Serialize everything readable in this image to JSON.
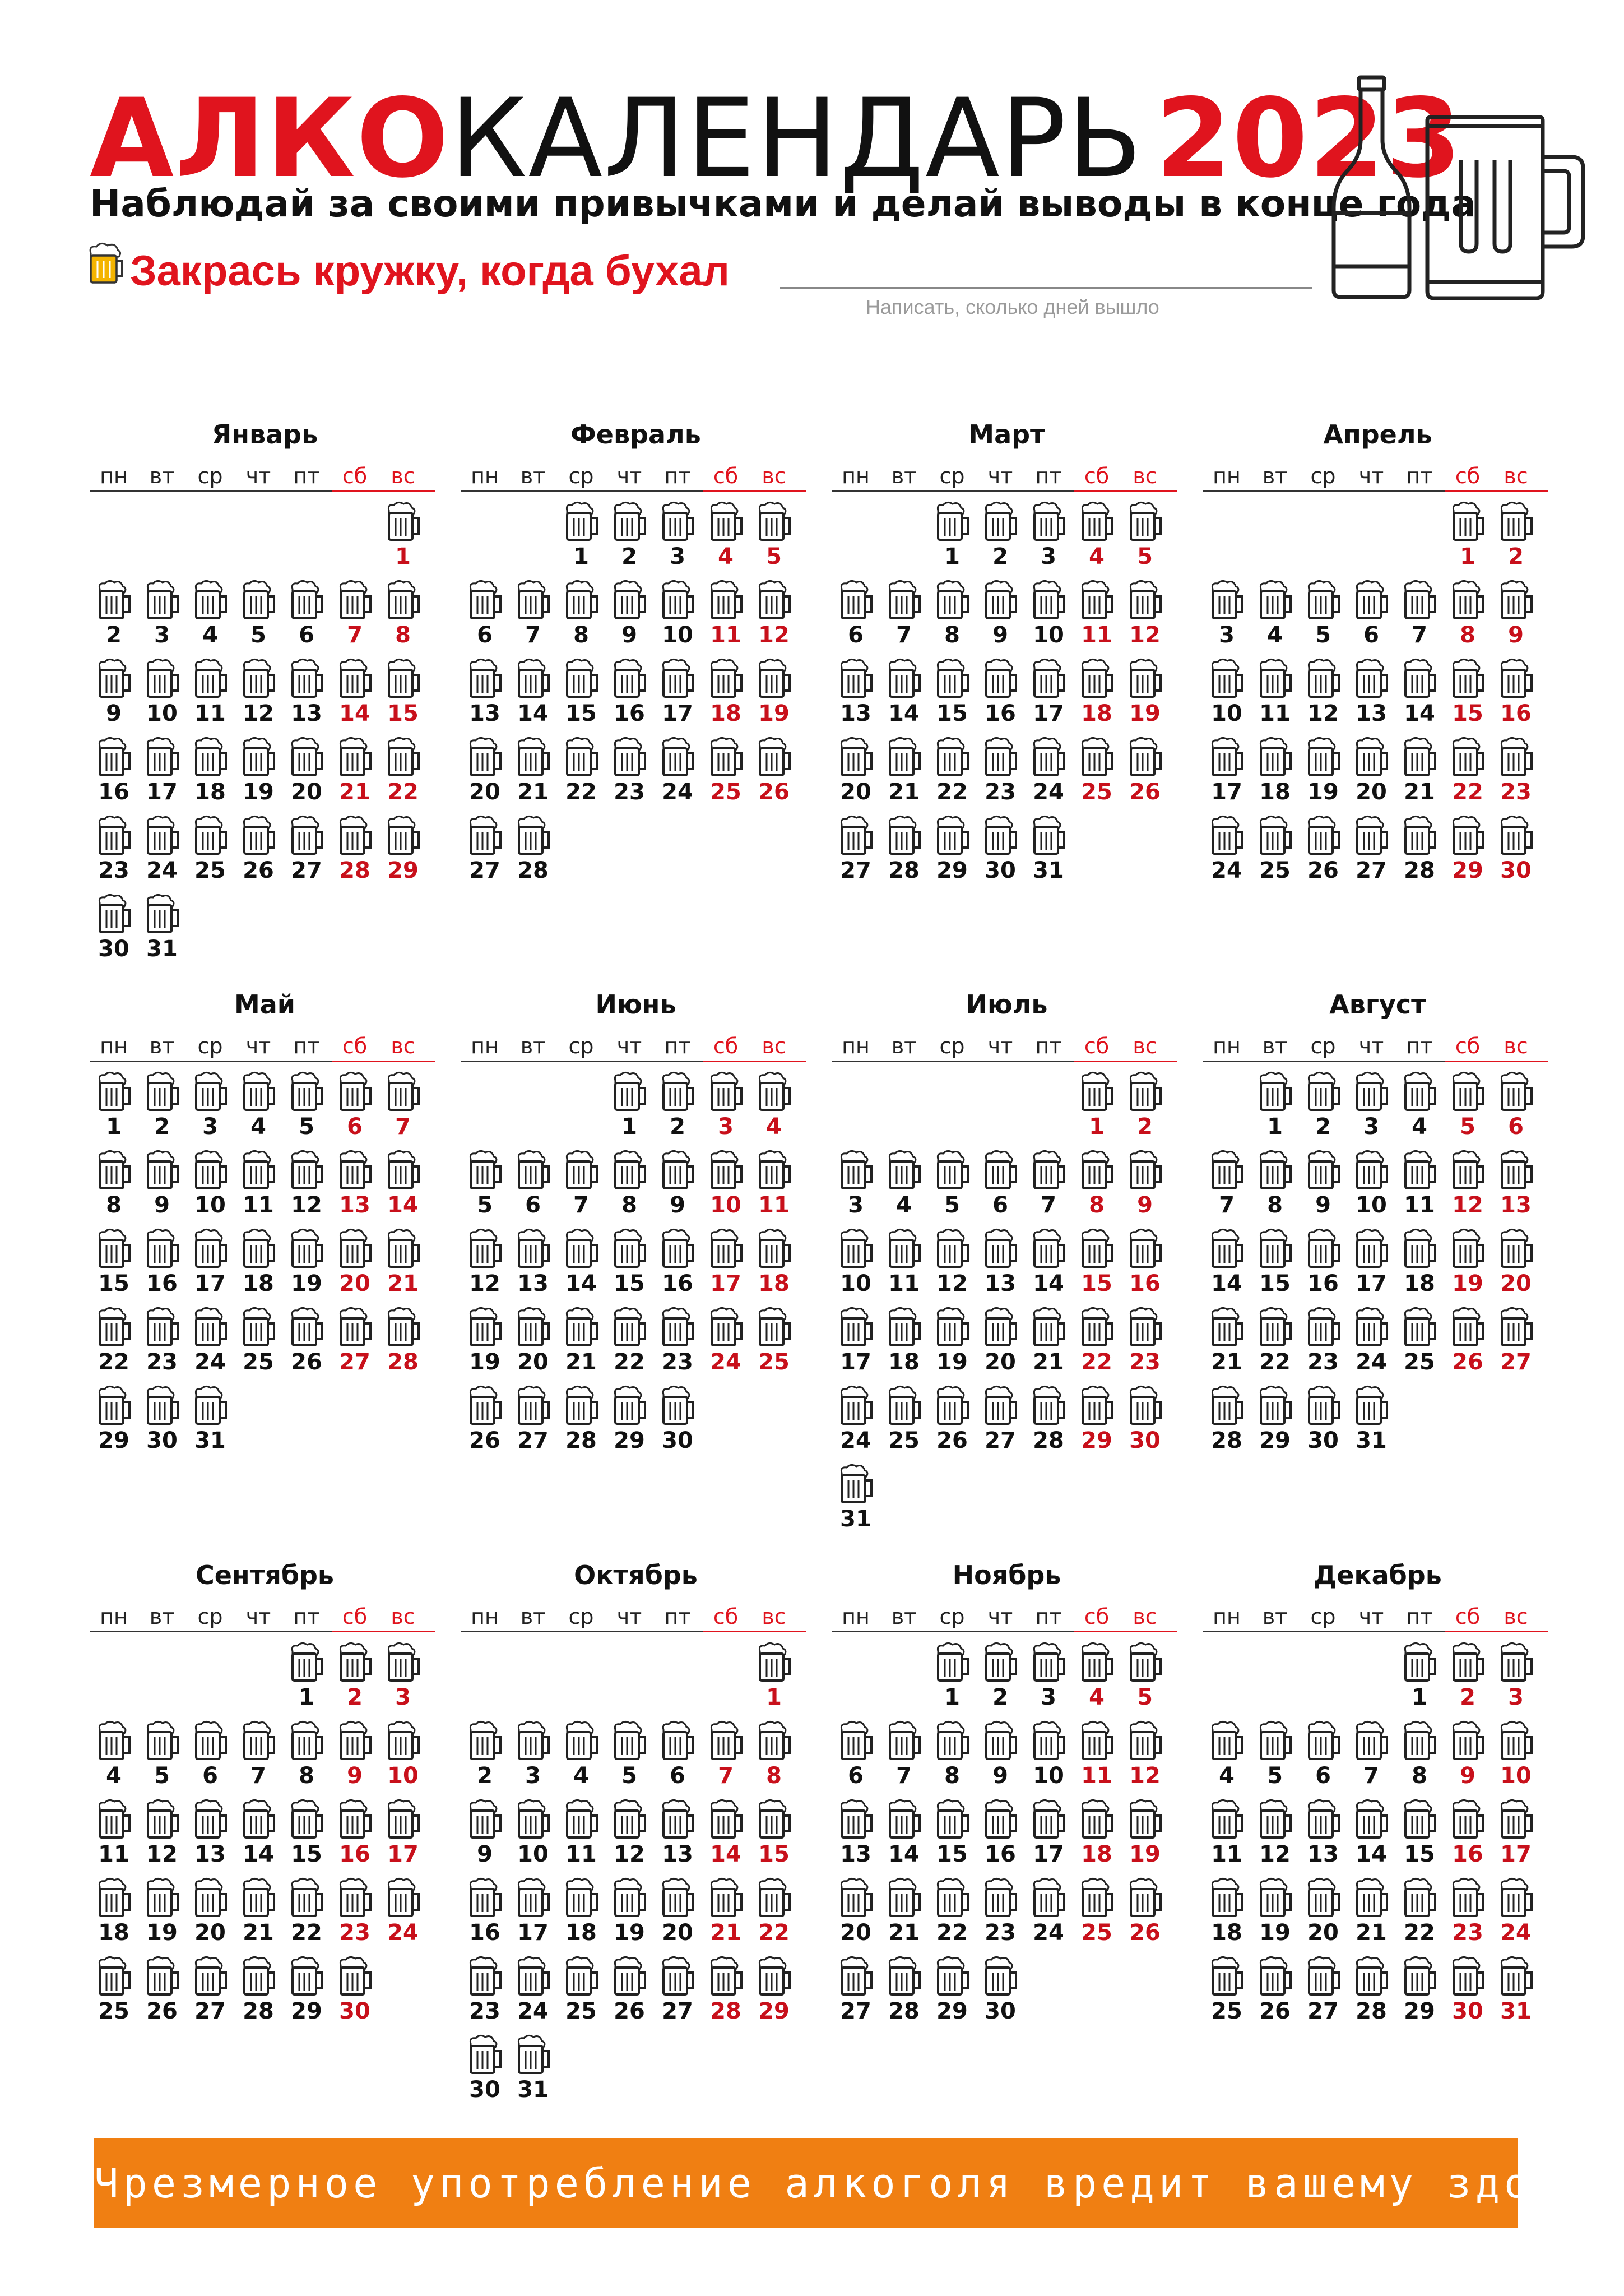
{
  "header": {
    "title_part1": "АЛКО",
    "title_part2": "КАЛЕНДАРЬ",
    "title_part3": "2023",
    "subtitle": "Наблюдай за своими привычками и делай выводы в конце года",
    "instruction": "Закрась кружку, когда бухал",
    "write_hint": "Написать, сколько дней вышло",
    "icons": [
      "beer-mug-icon",
      "bottle-icon",
      "beer-glass-icon"
    ]
  },
  "weekdays": [
    "пн",
    "вт",
    "ср",
    "чт",
    "пт",
    "сб",
    "вс"
  ],
  "months": [
    {
      "name": "Январь",
      "first_weekday": 7,
      "days": 31
    },
    {
      "name": "Февраль",
      "first_weekday": 3,
      "days": 28
    },
    {
      "name": "Март",
      "first_weekday": 3,
      "days": 31
    },
    {
      "name": "Апрель",
      "first_weekday": 6,
      "days": 30
    },
    {
      "name": "Май",
      "first_weekday": 1,
      "days": 31
    },
    {
      "name": "Июнь",
      "first_weekday": 4,
      "days": 30
    },
    {
      "name": "Июль",
      "first_weekday": 6,
      "days": 31
    },
    {
      "name": "Август",
      "first_weekday": 2,
      "days": 31
    },
    {
      "name": "Сентябрь",
      "first_weekday": 5,
      "days": 30
    },
    {
      "name": "Октябрь",
      "first_weekday": 7,
      "days": 31
    },
    {
      "name": "Ноябрь",
      "first_weekday": 3,
      "days": 30
    },
    {
      "name": "Декабрь",
      "first_weekday": 5,
      "days": 31
    }
  ],
  "colors": {
    "accent_red": "#e0141e",
    "weekend_red": "#c8101b",
    "banner_orange": "#f07f12",
    "banner_text": "#ffffff"
  },
  "footer": {
    "warning": "Чрезмерное употребление алкоголя вредит вашему здоровью"
  }
}
